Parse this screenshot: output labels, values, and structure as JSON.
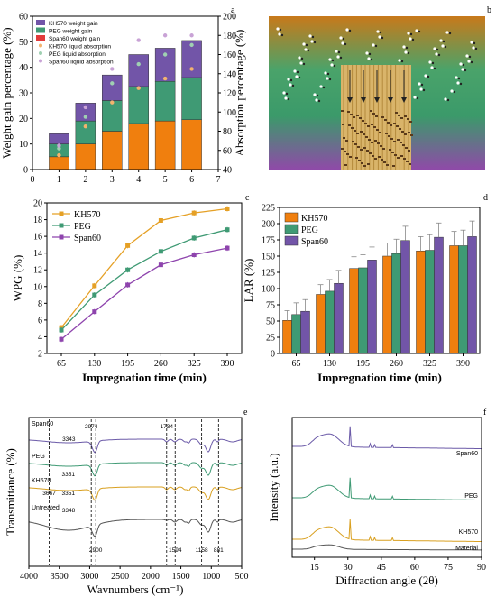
{
  "panels": {
    "a": {
      "label": "a",
      "chart_data": {
        "type": "bar",
        "subtype": "stacked-with-scatter",
        "x": [
          1,
          2,
          3,
          4,
          5,
          6
        ],
        "xticks": [
          "0",
          "1",
          "2",
          "3",
          "4",
          "5",
          "6",
          "7"
        ],
        "xlim": [
          0,
          7
        ],
        "ylabel": "Weight gain percentage (%)",
        "ylabel_right": "Absorption percentage (%)",
        "ylim": [
          0,
          60
        ],
        "yticks": [
          "0",
          "10",
          "20",
          "30",
          "40",
          "50",
          "60"
        ],
        "ylim_right": [
          40,
          200
        ],
        "yticks_right": [
          "40",
          "60",
          "80",
          "100",
          "120",
          "140",
          "160",
          "180",
          "200"
        ],
        "series": [
          {
            "name": "Span60 weight gain",
            "color": "#f07f0e",
            "values": [
              5,
              10,
              15,
              18,
              19,
              19.5
            ]
          },
          {
            "name": "PEG weight gain",
            "color": "#3f9a74",
            "values": [
              5,
              9,
              12,
              14.5,
              15.5,
              16.5
            ]
          },
          {
            "name": "KH570 weight gain",
            "color": "#7255a8",
            "values": [
              4,
              7,
              10,
              12.5,
              13,
              14.5
            ]
          }
        ],
        "scatter": [
          {
            "name": "KH570 liquid absorption",
            "color": "#f3b36e",
            "values": [
              55,
              85,
              110,
              125,
              135,
              145
            ]
          },
          {
            "name": "PEG liquid absorption",
            "color": "#9fd0b2",
            "values": [
              62,
              95,
              130,
              150,
              160,
              170
            ]
          },
          {
            "name": "Span60 liquid absorption",
            "color": "#c9a3d6",
            "values": [
              65,
              105,
              145,
              175,
              180,
              180
            ]
          }
        ],
        "legend_position": "top-left",
        "legend": [
          "KH570 weight gain",
          "PEG weight gain",
          "Span60 weight gain",
          "KH570 liquid absorption",
          "PEG liquid absorption",
          "Span60 liquid absorption"
        ]
      }
    },
    "b": {
      "label": "b"
    },
    "c": {
      "label": "c",
      "chart_data": {
        "type": "line",
        "categories": [
          "65",
          "130",
          "195",
          "260",
          "325",
          "390"
        ],
        "xlabel": "Impregnation time (min)",
        "ylabel": "WPG (%)",
        "ylim": [
          2,
          20
        ],
        "yticks": [
          "2",
          "4",
          "6",
          "8",
          "10",
          "12",
          "14",
          "16",
          "18",
          "20"
        ],
        "series": [
          {
            "name": "KH570",
            "color": "#e5a025",
            "values": [
              5.1,
              10.1,
              14.9,
              17.9,
              18.8,
              19.3
            ]
          },
          {
            "name": "PEG",
            "color": "#3f9a74",
            "values": [
              4.8,
              9.0,
              12.0,
              14.2,
              15.8,
              16.8
            ]
          },
          {
            "name": "Span60",
            "color": "#8e44ad",
            "values": [
              3.7,
              7.0,
              10.2,
              12.6,
              13.8,
              14.6
            ]
          }
        ],
        "legend_position": "top-left"
      }
    },
    "d": {
      "label": "d",
      "chart_data": {
        "type": "bar",
        "categories": [
          "65",
          "130",
          "195",
          "260",
          "325",
          "390"
        ],
        "xlabel": "Impregnation time (min)",
        "ylabel": "LAR (%)",
        "ylim": [
          0,
          225
        ],
        "yticks": [
          "0",
          "25",
          "50",
          "75",
          "100",
          "125",
          "150",
          "175",
          "200",
          "225"
        ],
        "series": [
          {
            "name": "KH570",
            "color": "#f07f0e",
            "values": [
              51,
              91,
              131,
              150,
              158,
              166
            ],
            "errors": [
              15,
              15,
              18,
              20,
              22,
              22
            ]
          },
          {
            "name": "PEG",
            "color": "#3f9a74",
            "values": [
              60,
              96,
              132,
              154,
              159,
              166
            ],
            "errors": [
              18,
              18,
              20,
              22,
              24,
              24
            ]
          },
          {
            "name": "Span60",
            "color": "#7255a8",
            "values": [
              65,
              108,
              144,
              174,
              179,
              180
            ],
            "errors": [
              18,
              20,
              20,
              22,
              22,
              24
            ]
          }
        ],
        "legend_position": "top-left"
      }
    },
    "e": {
      "label": "e",
      "chart_data": {
        "type": "line",
        "subtype": "ftir-spectra",
        "xlabel": "Wavnumbers (cm⁻¹)",
        "ylabel": "Transmittance (%)",
        "xlim": [
          4000,
          500
        ],
        "xticks": [
          "4000",
          "3500",
          "3000",
          "2500",
          "2000",
          "1500",
          "1000",
          "500"
        ],
        "series": [
          {
            "name": "Span60",
            "color": "#6b5aa8"
          },
          {
            "name": "PEG",
            "color": "#3f9a74"
          },
          {
            "name": "KH570",
            "color": "#d9a020"
          },
          {
            "name": "Untreated",
            "color": "#555555"
          }
        ],
        "peak_labels": [
          "2974",
          "1734",
          "3343",
          "3351",
          "3667",
          "3351",
          "3348",
          "2900",
          "1594",
          "1158",
          "881"
        ],
        "reference_lines": [
          3667,
          2974,
          2900,
          1734,
          1594,
          1158,
          881
        ]
      }
    },
    "f": {
      "label": "f",
      "chart_data": {
        "type": "line",
        "subtype": "xrd-patterns",
        "xlabel": "Diffraction angle (2θ)",
        "ylabel": "Intensity (a.u.)",
        "xlim": [
          5,
          90
        ],
        "xticks": [
          "15",
          "30",
          "45",
          "60",
          "75",
          "90"
        ],
        "series": [
          {
            "name": "Span60",
            "color": "#6b5aa8"
          },
          {
            "name": "PEG",
            "color": "#3f9a74"
          },
          {
            "name": "KH570",
            "color": "#d9a020"
          },
          {
            "name": "Material",
            "color": "#555555"
          }
        ]
      }
    }
  }
}
